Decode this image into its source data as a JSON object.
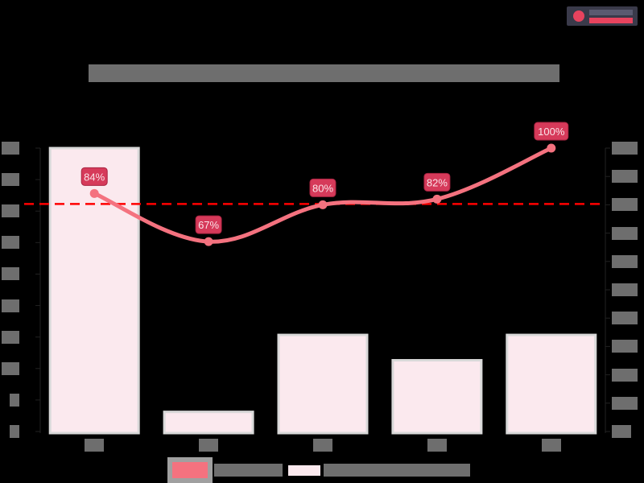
{
  "logo": {
    "name": "",
    "accent": "#e8435e"
  },
  "chart_data": {
    "type": "bar+line",
    "title": "",
    "categories": [
      "",
      "",
      "",
      "",
      ""
    ],
    "series": [
      {
        "name": "",
        "type": "bar",
        "axis": "left",
        "values": [
          9,
          0.67,
          3.1,
          2.3,
          3.1
        ],
        "color": "#fbe9ee",
        "border": "#d9d9d9"
      },
      {
        "name": "",
        "type": "line",
        "axis": "right",
        "smooth": true,
        "values": [
          84,
          67,
          80,
          82,
          100
        ],
        "data_labels": [
          "84%",
          "67%",
          "80%",
          "82%",
          "100%"
        ],
        "color": "#f4727f",
        "label_fill": "#d63a5a"
      }
    ],
    "reference_line": {
      "axis": "right",
      "value": 80,
      "style": "dashed",
      "color": "#ff0000"
    },
    "left_axis": {
      "ylim": [
        0,
        9
      ],
      "ticks": 10,
      "tick_labels": [
        "",
        "",
        "",
        "",
        "",
        "",
        "",
        "",
        "",
        ""
      ]
    },
    "right_axis": {
      "ylim": [
        0,
        100
      ],
      "ticks": 11,
      "unit": "%",
      "tick_labels": [
        "",
        "",
        "",
        "",
        "",
        "",
        "",
        "",
        "",
        "",
        ""
      ]
    },
    "xlabel": "",
    "ylabel": "",
    "grid": false,
    "legend": {
      "position": "bottom",
      "entries": [
        "",
        ""
      ]
    }
  }
}
